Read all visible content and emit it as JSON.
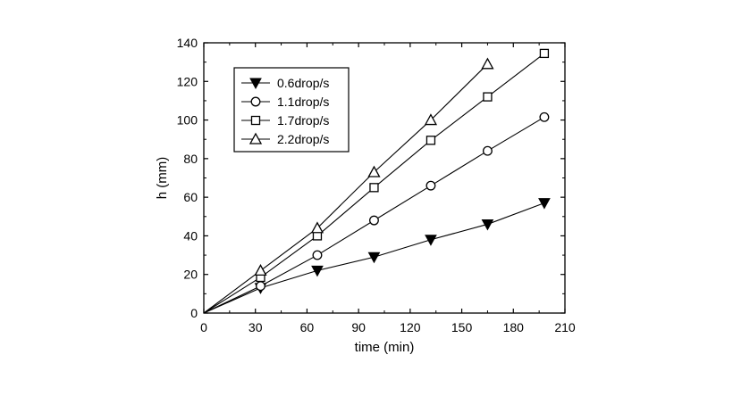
{
  "chart_data": {
    "type": "line",
    "xlabel": "time (min)",
    "ylabel": "h (mm)",
    "xlim": [
      0,
      210
    ],
    "ylim": [
      0,
      140
    ],
    "xticks": [
      0,
      30,
      60,
      90,
      120,
      150,
      180,
      210
    ],
    "yticks": [
      0,
      20,
      40,
      60,
      80,
      100,
      120,
      140
    ],
    "grid": false,
    "legend_position": "top-left",
    "series": [
      {
        "name": "0.6drop/s",
        "marker": "triangle-down-filled",
        "x": [
          0,
          33,
          66,
          99,
          132,
          165,
          198
        ],
        "y": [
          0,
          13,
          22,
          29,
          38,
          46,
          57
        ]
      },
      {
        "name": "1.1drop/s",
        "marker": "circle-open",
        "x": [
          0,
          33,
          66,
          99,
          132,
          165,
          198
        ],
        "y": [
          0,
          14,
          30,
          48,
          66,
          84,
          101.5
        ]
      },
      {
        "name": "1.7drop/s",
        "marker": "square-open",
        "x": [
          0,
          33,
          66,
          99,
          132,
          165,
          198
        ],
        "y": [
          0,
          18.5,
          40,
          65,
          89.5,
          112,
          134.5
        ]
      },
      {
        "name": "2.2drop/s",
        "marker": "triangle-up-open",
        "x": [
          0,
          33,
          66,
          99,
          132,
          165
        ],
        "y": [
          0,
          22,
          44,
          73,
          100,
          129
        ]
      }
    ]
  }
}
